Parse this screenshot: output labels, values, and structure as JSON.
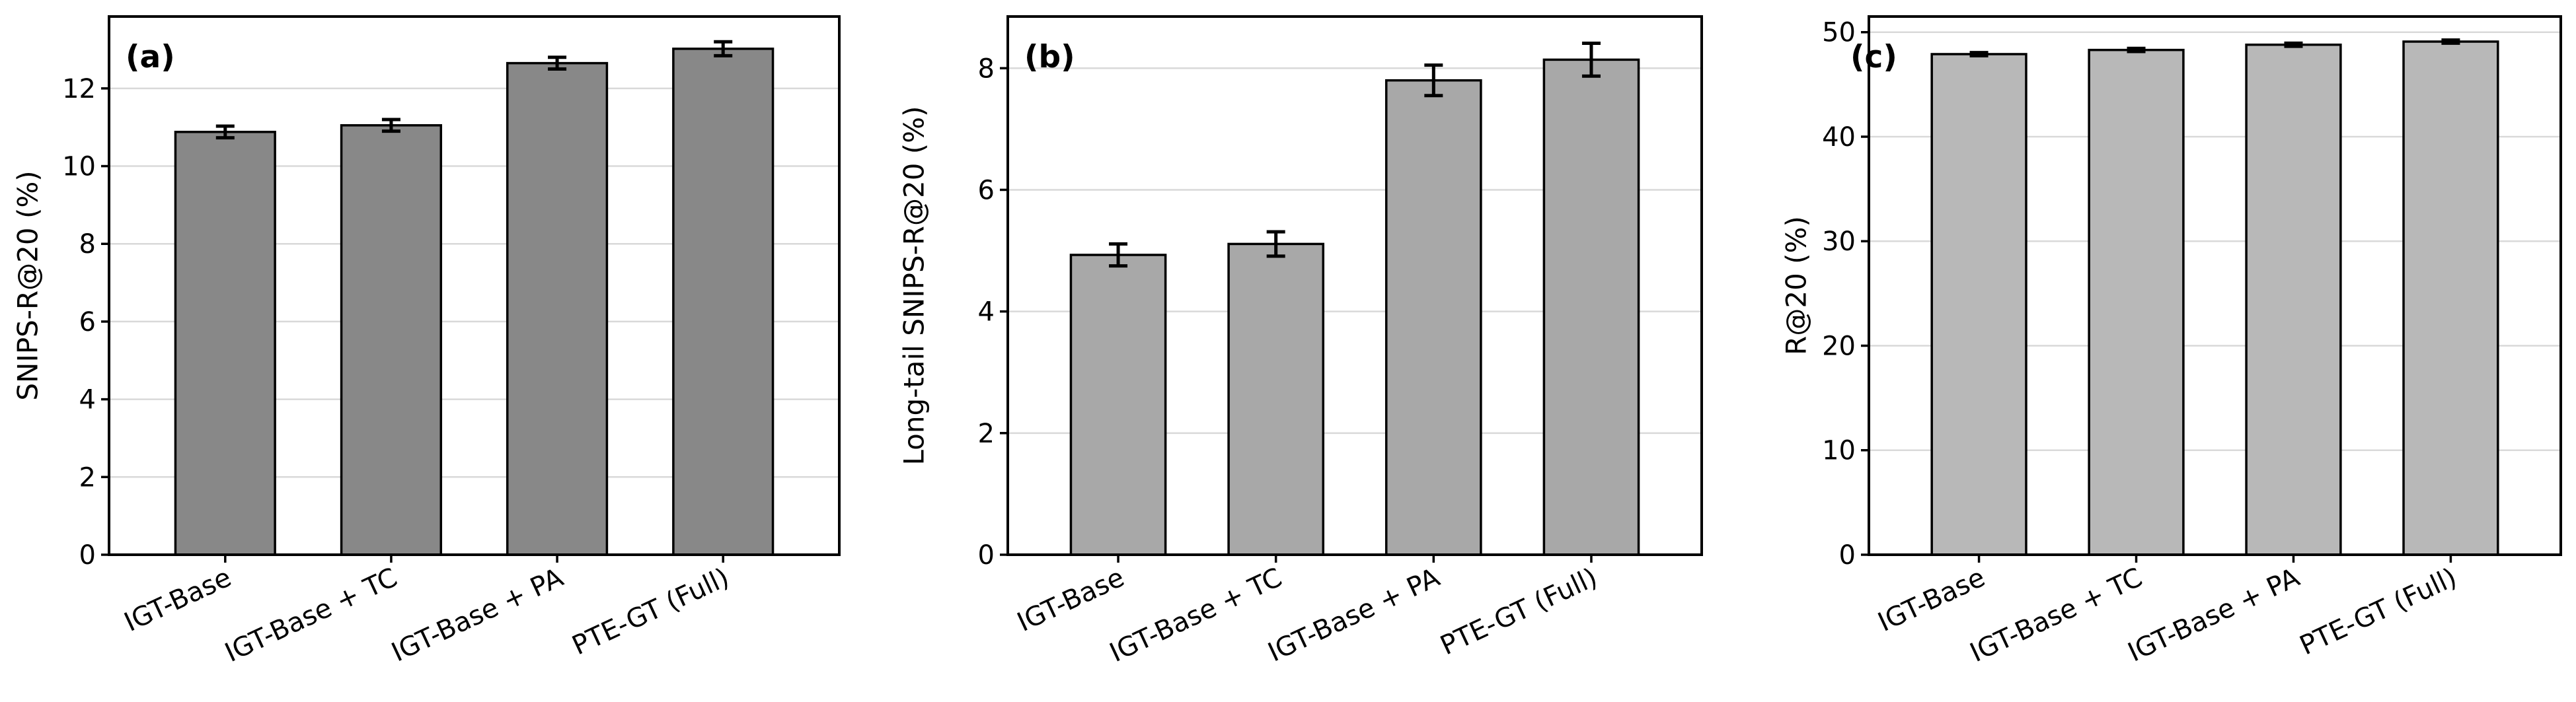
{
  "chart_data": [
    {
      "type": "bar",
      "panel_label": "(a)",
      "ylabel": "SNIPS-R@20 (%)",
      "xlabel": "",
      "categories": [
        "IGT-Base",
        "IGT-Base + TC",
        "IGT-Base + PA",
        "PTE-GT (Full)"
      ],
      "values": [
        10.88,
        11.05,
        12.65,
        13.02
      ],
      "errors": [
        0.15,
        0.15,
        0.15,
        0.18
      ],
      "ylim": [
        0,
        13.85
      ],
      "yticks": [
        0,
        2,
        4,
        6,
        8,
        10,
        12
      ],
      "grid": true,
      "bar_color": "#888888"
    },
    {
      "type": "bar",
      "panel_label": "(b)",
      "ylabel": "Long-tail SNIPS-R@20 (%)",
      "xlabel": "",
      "categories": [
        "IGT-Base",
        "IGT-Base + TC",
        "IGT-Base + PA",
        "PTE-GT (Full)"
      ],
      "values": [
        4.93,
        5.11,
        7.8,
        8.14
      ],
      "errors": [
        0.18,
        0.2,
        0.25,
        0.27
      ],
      "ylim": [
        0,
        8.85
      ],
      "yticks": [
        0,
        2,
        4,
        6,
        8
      ],
      "grid": true,
      "bar_color": "#a8a8a8"
    },
    {
      "type": "bar",
      "panel_label": "(c)",
      "ylabel": "R@20 (%)",
      "xlabel": "",
      "categories": [
        "IGT-Base",
        "IGT-Base + TC",
        "IGT-Base + PA",
        "PTE-GT (Full)"
      ],
      "values": [
        47.9,
        48.3,
        48.8,
        49.1
      ],
      "errors": [
        0.15,
        0.15,
        0.15,
        0.15
      ],
      "ylim": [
        0,
        51.5
      ],
      "yticks": [
        0,
        10,
        20,
        30,
        40,
        50
      ],
      "grid": true,
      "bar_color": "#b8b8b8"
    }
  ]
}
